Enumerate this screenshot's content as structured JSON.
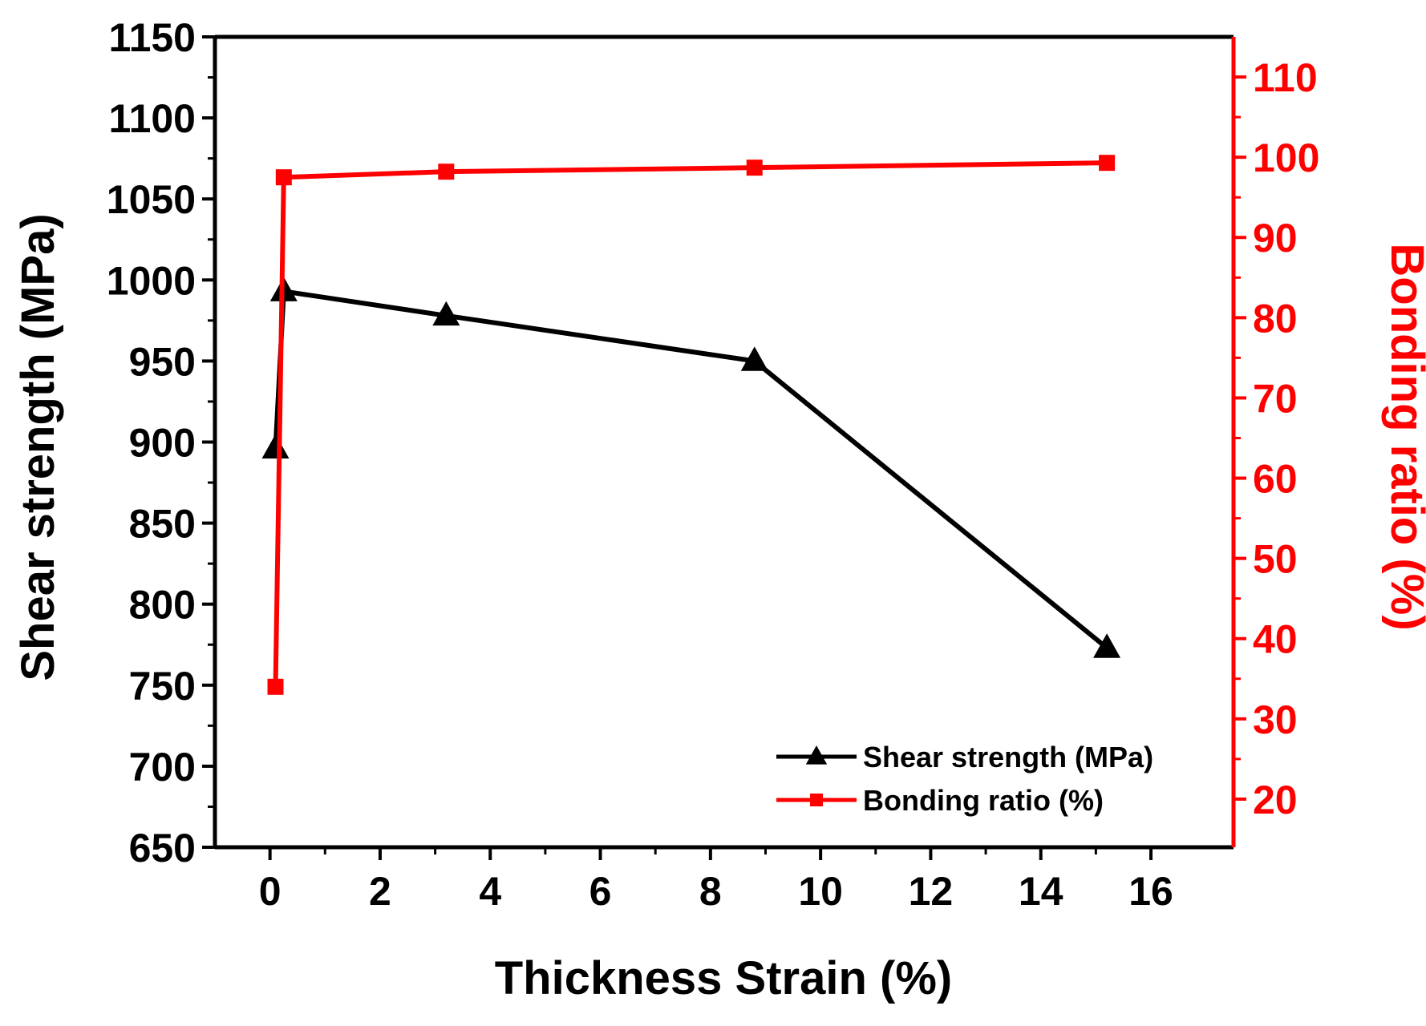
{
  "chart_data": {
    "type": "line",
    "xlabel": "Thickness Strain (%)",
    "ylabel_left": "Shear strength (MPa)",
    "ylabel_right": "Bonding ratio (%)",
    "xlim": [
      -1,
      17.5
    ],
    "ylim_left": [
      650,
      1150
    ],
    "ylim_right": [
      14,
      115
    ],
    "x_ticks": [
      0,
      2,
      4,
      6,
      8,
      10,
      12,
      14,
      16
    ],
    "x_tick_labels": [
      "0",
      "2",
      "4",
      "6",
      "8",
      "10",
      "12",
      "14",
      "16"
    ],
    "y_left_ticks": [
      650,
      700,
      750,
      800,
      850,
      900,
      950,
      1000,
      1050,
      1100,
      1150
    ],
    "y_left_tick_labels": [
      "650",
      "700",
      "750",
      "800",
      "850",
      "900",
      "950",
      "1000",
      "1050",
      "1100",
      "1150"
    ],
    "y_right_ticks": [
      20,
      30,
      40,
      50,
      60,
      70,
      80,
      90,
      100,
      110
    ],
    "y_right_tick_labels": [
      "20",
      "30",
      "40",
      "50",
      "60",
      "70",
      "80",
      "90",
      "100",
      "110"
    ],
    "series": [
      {
        "name": "Shear strength (MPa)",
        "axis": "left",
        "color": "#000000",
        "marker": "triangle",
        "x": [
          0.1,
          0.25,
          3.2,
          8.8,
          15.2
        ],
        "y": [
          896,
          993,
          978,
          950,
          773
        ]
      },
      {
        "name": "Bonding ratio (%)",
        "axis": "right",
        "color": "#ff0000",
        "marker": "square",
        "x": [
          0.1,
          0.25,
          3.2,
          8.8,
          15.2
        ],
        "y": [
          34,
          97.5,
          98.2,
          98.7,
          99.3
        ]
      }
    ],
    "legend_position": "bottom-right"
  }
}
